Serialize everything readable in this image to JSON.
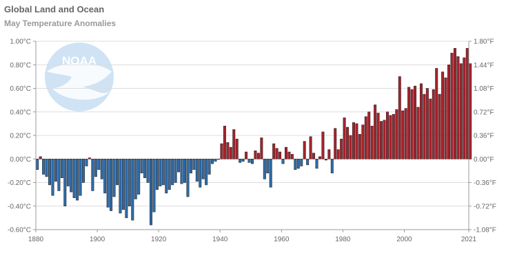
{
  "page": {
    "title": "Global Land and Ocean",
    "subtitle": "May Temperature Anomalies",
    "logo_text": "NOAA"
  },
  "colors": {
    "positive": "#a8222c",
    "negative": "#2f6ba8",
    "bar_outline": "#1a1a1a",
    "grid": "#dcdcdc",
    "axis": "#999999",
    "logo": "#cfe3f5"
  },
  "chart_data": {
    "type": "bar",
    "title": "Global Land and Ocean",
    "subtitle": "May Temperature Anomalies",
    "x_start": 1880,
    "x_end": 2021,
    "xlim": [
      1880,
      2021
    ],
    "ylim": [
      -0.6,
      1.0
    ],
    "ylim_right": [
      -1.08,
      1.8
    ],
    "grid": true,
    "xlabel": "",
    "ylabel": "",
    "x_ticks": [
      "1880",
      "1900",
      "1920",
      "1940",
      "1960",
      "1980",
      "2000",
      "2021"
    ],
    "y_ticks_left": [
      "-0.60°C",
      "-0.40°C",
      "-0.20°C",
      "0.00°C",
      "0.20°C",
      "0.40°C",
      "0.60°C",
      "0.80°C",
      "1.00°C"
    ],
    "y_ticks_right": [
      "-1.08°F",
      "-0.72°F",
      "-0.36°F",
      "0.00°F",
      "0.36°F",
      "0.72°F",
      "1.08°F",
      "1.44°F",
      "1.80°F"
    ],
    "values": [
      -0.09,
      0.02,
      -0.13,
      -0.15,
      -0.22,
      -0.31,
      -0.19,
      -0.27,
      -0.16,
      -0.4,
      -0.23,
      -0.28,
      -0.33,
      -0.35,
      -0.31,
      -0.2,
      -0.06,
      0.01,
      -0.27,
      -0.15,
      -0.09,
      -0.17,
      -0.29,
      -0.41,
      -0.44,
      -0.32,
      -0.22,
      -0.46,
      -0.43,
      -0.5,
      -0.4,
      -0.52,
      -0.34,
      -0.3,
      -0.12,
      -0.16,
      -0.2,
      -0.56,
      -0.45,
      -0.26,
      -0.23,
      -0.22,
      -0.29,
      -0.26,
      -0.22,
      -0.2,
      -0.11,
      -0.21,
      -0.2,
      -0.32,
      -0.12,
      -0.09,
      -0.19,
      -0.24,
      -0.17,
      -0.22,
      -0.13,
      -0.04,
      -0.02,
      0.0,
      0.13,
      0.28,
      0.14,
      0.1,
      0.25,
      0.17,
      -0.03,
      -0.02,
      0.06,
      -0.03,
      -0.04,
      0.07,
      0.05,
      0.18,
      -0.17,
      -0.12,
      -0.24,
      0.13,
      0.09,
      0.06,
      -0.04,
      0.1,
      0.06,
      0.04,
      -0.09,
      -0.08,
      -0.06,
      0.15,
      -0.05,
      0.19,
      0.05,
      -0.08,
      0.02,
      0.23,
      -0.01,
      0.08,
      -0.12,
      0.26,
      0.08,
      0.17,
      0.35,
      0.27,
      0.2,
      0.31,
      0.3,
      0.21,
      0.29,
      0.36,
      0.4,
      0.28,
      0.46,
      0.39,
      0.32,
      0.33,
      0.4,
      0.37,
      0.38,
      0.42,
      0.7,
      0.41,
      0.43,
      0.61,
      0.59,
      0.62,
      0.44,
      0.64,
      0.55,
      0.6,
      0.51,
      0.59,
      0.77,
      0.55,
      0.74,
      0.69,
      0.8,
      0.9,
      0.94,
      0.87,
      0.81,
      0.86,
      0.94,
      0.81
    ]
  }
}
